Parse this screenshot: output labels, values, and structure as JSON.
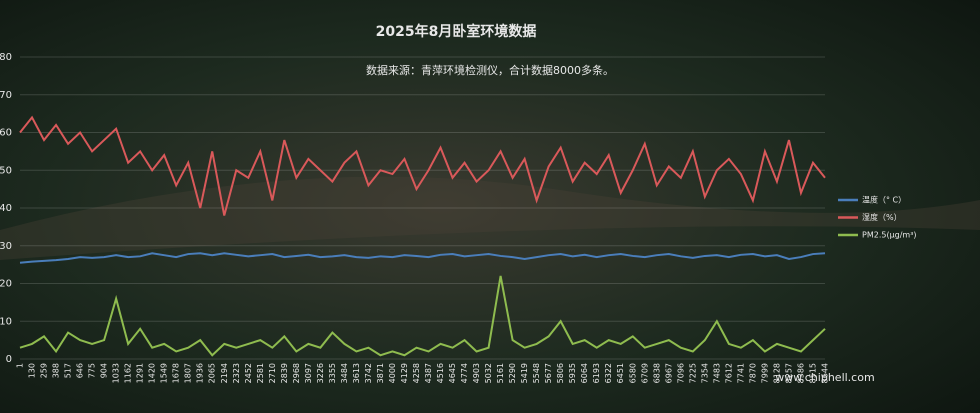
{
  "chart_data": {
    "type": "line",
    "title": "2025年8月卧室环境数据",
    "subtitle": "数据来源：青萍环境检测仪，合计数据8000多条。",
    "watermark": "www.chiphell.com",
    "categories": [
      1,
      130,
      259,
      388,
      517,
      646,
      775,
      904,
      1033,
      1162,
      1291,
      1420,
      1549,
      1678,
      1807,
      1936,
      2065,
      2194,
      2323,
      2452,
      2581,
      2710,
      2839,
      2968,
      3097,
      3226,
      3355,
      3484,
      3613,
      3742,
      3871,
      4000,
      4129,
      4258,
      4387,
      4516,
      4645,
      4774,
      4903,
      5032,
      5161,
      5290,
      5419,
      5548,
      5677,
      5806,
      5935,
      6064,
      6193,
      6322,
      6451,
      6580,
      6709,
      6838,
      6967,
      7096,
      7225,
      7354,
      7483,
      7612,
      7741,
      7870,
      7999,
      8128,
      8257,
      8386,
      8515,
      8644
    ],
    "series": [
      {
        "name": "温度（° C）",
        "color": "#4a7ebb",
        "values": [
          25.5,
          25.8,
          26,
          26.2,
          26.5,
          27,
          26.8,
          27,
          27.5,
          27,
          27.2,
          28,
          27.5,
          27,
          27.8,
          28,
          27.5,
          28,
          27.6,
          27.2,
          27.5,
          27.8,
          27,
          27.3,
          27.6,
          27,
          27.2,
          27.5,
          27,
          26.8,
          27.2,
          27,
          27.5,
          27.3,
          27,
          27.6,
          27.8,
          27.2,
          27.5,
          27.8,
          27.3,
          27,
          26.5,
          27,
          27.5,
          27.8,
          27.2,
          27.6,
          27,
          27.5,
          27.8,
          27.3,
          27,
          27.5,
          27.8,
          27.2,
          26.8,
          27.3,
          27.5,
          27,
          27.6,
          27.8,
          27.2,
          27.5,
          26.5,
          27,
          27.8,
          28
        ]
      },
      {
        "name": "湿度（%）",
        "color": "#d9595a",
        "values": [
          60,
          64,
          58,
          62,
          57,
          60,
          55,
          58,
          61,
          52,
          55,
          50,
          54,
          46,
          52,
          40,
          55,
          38,
          50,
          48,
          55,
          42,
          58,
          48,
          53,
          50,
          47,
          52,
          55,
          46,
          50,
          49,
          53,
          45,
          50,
          56,
          48,
          52,
          47,
          50,
          55,
          48,
          53,
          42,
          51,
          56,
          47,
          52,
          49,
          54,
          44,
          50,
          57,
          46,
          51,
          48,
          55,
          43,
          50,
          53,
          49,
          42,
          55,
          47,
          58,
          44,
          52,
          48
        ]
      },
      {
        "name": "PM2.5(μg/m³)",
        "color": "#8fbc4f",
        "values": [
          3,
          4,
          6,
          2,
          7,
          5,
          4,
          5,
          16,
          4,
          8,
          3,
          4,
          2,
          3,
          5,
          1,
          4,
          3,
          4,
          5,
          3,
          6,
          2,
          4,
          3,
          7,
          4,
          2,
          3,
          1,
          2,
          1,
          3,
          2,
          4,
          3,
          5,
          2,
          3,
          22,
          5,
          3,
          4,
          6,
          10,
          4,
          5,
          3,
          5,
          4,
          6,
          3,
          4,
          5,
          3,
          2,
          5,
          10,
          4,
          3,
          5,
          2,
          4,
          3,
          2,
          5,
          8
        ]
      }
    ],
    "ylim": [
      0,
      80
    ],
    "yticks": [
      0,
      10,
      20,
      30,
      40,
      50,
      60,
      70,
      80
    ],
    "grid": true,
    "legend": "right"
  }
}
